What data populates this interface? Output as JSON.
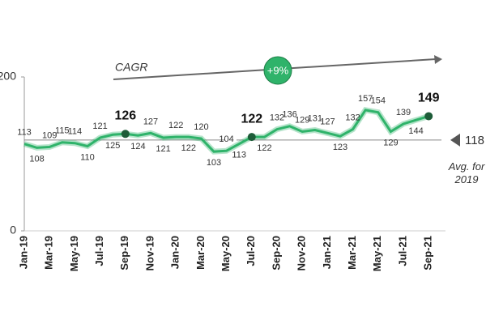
{
  "chart_data": {
    "type": "line",
    "categories": [
      "Jan-19",
      null,
      "Mar-19",
      null,
      "May-19",
      null,
      "Jul-19",
      null,
      "Sep-19",
      null,
      "Nov-19",
      null,
      "Jan-20",
      null,
      "Mar-20",
      null,
      "May-20",
      null,
      "Jul-20",
      null,
      "Sep-20",
      null,
      "Nov-20",
      null,
      "Jan-21",
      null,
      "Mar-21",
      null,
      "May-21",
      null,
      "Jul-21",
      null,
      "Sep-21"
    ],
    "values": [
      113,
      108,
      109,
      115,
      114,
      110,
      121,
      125,
      126,
      124,
      127,
      121,
      122,
      122,
      120,
      103,
      104,
      113,
      122,
      122,
      132,
      136,
      129,
      131,
      127,
      123,
      132,
      157,
      154,
      129,
      139,
      144,
      149
    ],
    "color": "#2fb36a",
    "highlight": [
      "Sep-19",
      "Jul-20",
      "Sep-21"
    ],
    "ylim": [
      0,
      200
    ],
    "yticks": [
      0,
      200
    ],
    "average": {
      "value": 118,
      "label": "Avg. for 2019"
    },
    "cagr": {
      "label": "CAGR",
      "value": "+9%"
    }
  }
}
